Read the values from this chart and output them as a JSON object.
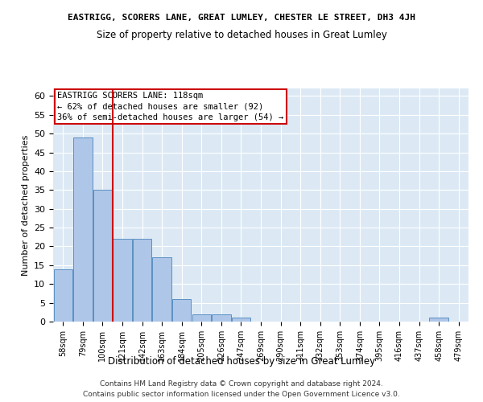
{
  "title1": "EASTRIGG, SCORERS LANE, GREAT LUMLEY, CHESTER LE STREET, DH3 4JH",
  "title2": "Size of property relative to detached houses in Great Lumley",
  "xlabel": "Distribution of detached houses by size in Great Lumley",
  "ylabel": "Number of detached properties",
  "categories": [
    "58sqm",
    "79sqm",
    "100sqm",
    "121sqm",
    "142sqm",
    "163sqm",
    "184sqm",
    "205sqm",
    "226sqm",
    "247sqm",
    "269sqm",
    "290sqm",
    "311sqm",
    "332sqm",
    "353sqm",
    "374sqm",
    "395sqm",
    "416sqm",
    "437sqm",
    "458sqm",
    "479sqm"
  ],
  "values": [
    14,
    49,
    35,
    22,
    22,
    17,
    6,
    2,
    2,
    1,
    0,
    0,
    0,
    0,
    0,
    0,
    0,
    0,
    0,
    1,
    0
  ],
  "bar_color": "#aec6e8",
  "bar_edge_color": "#5a8fc2",
  "vline_x_index": 3,
  "vline_color": "#cc0000",
  "annotation_line1": "EASTRIGG SCORERS LANE: 118sqm",
  "annotation_line2": "← 62% of detached houses are smaller (92)",
  "annotation_line3": "36% of semi-detached houses are larger (54) →",
  "annotation_box_color": "#ffffff",
  "annotation_box_edge_color": "#cc0000",
  "ylim": [
    0,
    62
  ],
  "yticks": [
    0,
    5,
    10,
    15,
    20,
    25,
    30,
    35,
    40,
    45,
    50,
    55,
    60
  ],
  "background_color": "#dce9f5",
  "footer1": "Contains HM Land Registry data © Crown copyright and database right 2024.",
  "footer2": "Contains public sector information licensed under the Open Government Licence v3.0."
}
